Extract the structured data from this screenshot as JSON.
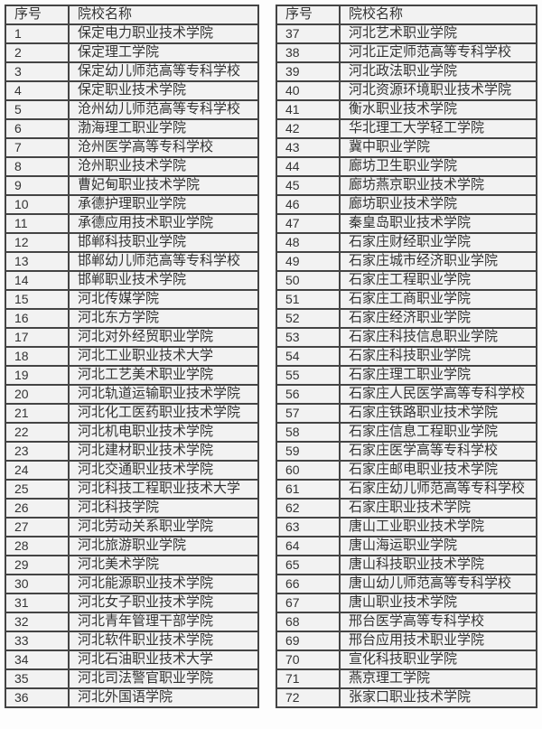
{
  "page": {
    "background_color": "#fdfdfd",
    "table_background_color": "#f2f2f2",
    "border_color": "#444444",
    "text_color": "#333333"
  },
  "tables": [
    {
      "name": "colleges-1-36",
      "headers": [
        "序号",
        "院校名称"
      ],
      "rows": [
        [
          "1",
          "保定电力职业技术学院"
        ],
        [
          "2",
          "保定理工学院"
        ],
        [
          "3",
          "保定幼儿师范高等专科学校"
        ],
        [
          "4",
          "保定职业技术学院"
        ],
        [
          "5",
          "沧州幼儿师范高等专科学校"
        ],
        [
          "6",
          "渤海理工职业学院"
        ],
        [
          "7",
          "沧州医学高等专科学校"
        ],
        [
          "8",
          "沧州职业技术学院"
        ],
        [
          "9",
          "曹妃甸职业技术学院"
        ],
        [
          "10",
          "承德护理职业学院"
        ],
        [
          "11",
          "承德应用技术职业学院"
        ],
        [
          "12",
          "邯郸科技职业学院"
        ],
        [
          "13",
          "邯郸幼儿师范高等专科学校"
        ],
        [
          "14",
          "邯郸职业技术学院"
        ],
        [
          "15",
          "河北传媒学院"
        ],
        [
          "16",
          "河北东方学院"
        ],
        [
          "17",
          "河北对外经贸职业学院"
        ],
        [
          "18",
          "河北工业职业技术大学"
        ],
        [
          "19",
          "河北工艺美术职业学院"
        ],
        [
          "20",
          "河北轨道运输职业技术学院"
        ],
        [
          "21",
          "河北化工医药职业技术学院"
        ],
        [
          "22",
          "河北机电职业技术学院"
        ],
        [
          "23",
          "河北建材职业技术学院"
        ],
        [
          "24",
          "河北交通职业技术学院"
        ],
        [
          "25",
          "河北科技工程职业技术大学"
        ],
        [
          "26",
          "河北科技学院"
        ],
        [
          "27",
          "河北劳动关系职业学院"
        ],
        [
          "28",
          "河北旅游职业学院"
        ],
        [
          "29",
          "河北美术学院"
        ],
        [
          "30",
          "河北能源职业技术学院"
        ],
        [
          "31",
          "河北女子职业技术学院"
        ],
        [
          "32",
          "河北青年管理干部学院"
        ],
        [
          "33",
          "河北软件职业技术学院"
        ],
        [
          "34",
          "河北石油职业技术大学"
        ],
        [
          "35",
          "河北司法警官职业学院"
        ],
        [
          "36",
          "河北外国语学院"
        ]
      ]
    },
    {
      "name": "colleges-37-72",
      "headers": [
        "序号",
        "院校名称"
      ],
      "rows": [
        [
          "37",
          "河北艺术职业学院"
        ],
        [
          "38",
          "河北正定师范高等专科学校"
        ],
        [
          "39",
          "河北政法职业学院"
        ],
        [
          "40",
          "河北资源环境职业技术学院"
        ],
        [
          "41",
          "衡水职业技术学院"
        ],
        [
          "42",
          "华北理工大学轻工学院"
        ],
        [
          "43",
          "冀中职业学院"
        ],
        [
          "44",
          "廊坊卫生职业学院"
        ],
        [
          "45",
          "廊坊燕京职业技术学院"
        ],
        [
          "46",
          "廊坊职业技术学院"
        ],
        [
          "47",
          "秦皇岛职业技术学院"
        ],
        [
          "48",
          "石家庄财经职业学院"
        ],
        [
          "49",
          "石家庄城市经济职业学院"
        ],
        [
          "50",
          "石家庄工程职业学院"
        ],
        [
          "51",
          "石家庄工商职业学院"
        ],
        [
          "52",
          "石家庄经济职业学院"
        ],
        [
          "53",
          "石家庄科技信息职业学院"
        ],
        [
          "54",
          "石家庄科技职业学院"
        ],
        [
          "55",
          "石家庄理工职业学院"
        ],
        [
          "56",
          "石家庄人民医学高等专科学校"
        ],
        [
          "57",
          "石家庄铁路职业技术学院"
        ],
        [
          "58",
          "石家庄信息工程职业学院"
        ],
        [
          "59",
          "石家庄医学高等专科学校"
        ],
        [
          "60",
          "石家庄邮电职业技术学院"
        ],
        [
          "61",
          "石家庄幼儿师范高等专科学校"
        ],
        [
          "62",
          "石家庄职业技术学院"
        ],
        [
          "63",
          "唐山工业职业技术学院"
        ],
        [
          "64",
          "唐山海运职业学院"
        ],
        [
          "65",
          "唐山科技职业技术学院"
        ],
        [
          "66",
          "唐山幼儿师范高等专科学校"
        ],
        [
          "67",
          "唐山职业技术学院"
        ],
        [
          "68",
          "邢台医学高等专科学校"
        ],
        [
          "69",
          "邢台应用技术职业学院"
        ],
        [
          "70",
          "宣化科技职业学院"
        ],
        [
          "71",
          "燕京理工学院"
        ],
        [
          "72",
          "张家口职业技术学院"
        ]
      ]
    }
  ]
}
